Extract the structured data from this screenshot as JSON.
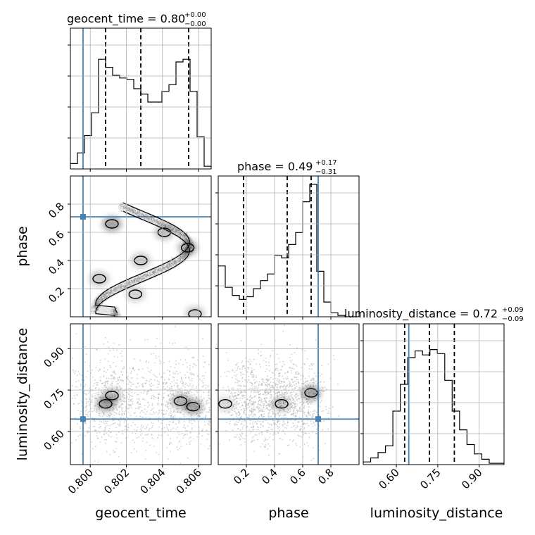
{
  "colors": {
    "truth": "#4682b4",
    "hist": "#000000",
    "grid": "#b0b0b0",
    "points": "#9a9a9a"
  },
  "titles": {
    "geocent_time": {
      "prefix": "geocent_time = ",
      "value": "0.80",
      "plus": "+0.00",
      "minus": "−0.00"
    },
    "phase": {
      "prefix": "phase = ",
      "value": "0.49",
      "plus": "+0.17",
      "minus": "−0.31"
    },
    "luminosity_distance": {
      "prefix": "luminosity_distance = ",
      "value": "0.72",
      "plus": "+0.09",
      "minus": "−0.09"
    }
  },
  "axis_labels": {
    "geocent_time": "geocent_time",
    "phase": "phase",
    "luminosity_distance": "luminosity_distance"
  },
  "chart_data": {
    "type": "corner",
    "parameters": [
      "geocent_time",
      "phase",
      "luminosity_distance"
    ],
    "truths": {
      "geocent_time": 0.7996,
      "phase": 0.71,
      "luminosity_distance": 0.645
    },
    "ranges": {
      "geocent_time": [
        0.7989,
        0.8067
      ],
      "phase": [
        0.0,
        1.0
      ],
      "luminosity_distance": [
        0.48,
        0.99
      ]
    },
    "ticks": {
      "geocent_time": {
        "values": [
          0.8,
          0.802,
          0.804,
          0.806
        ],
        "labels": [
          "0.800",
          "0.802",
          "0.804",
          "0.806"
        ]
      },
      "phase": {
        "values": [
          0.2,
          0.4,
          0.6,
          0.8
        ],
        "labels": [
          "0.2",
          "0.4",
          "0.6",
          "0.8"
        ]
      },
      "luminosity_distance": {
        "values": [
          0.6,
          0.75,
          0.9
        ],
        "labels": [
          "0.60",
          "0.75",
          "0.90"
        ]
      }
    },
    "quantiles": {
      "geocent_time": [
        0.80085,
        0.8028,
        0.80545
      ],
      "phase": [
        0.18,
        0.49,
        0.66
      ],
      "luminosity_distance": [
        0.63,
        0.72,
        0.81
      ]
    },
    "histograms": {
      "geocent_time": [
        0.04,
        0.12,
        0.25,
        0.42,
        0.82,
        0.76,
        0.7,
        0.68,
        0.67,
        0.6,
        0.56,
        0.5,
        0.5,
        0.58,
        0.63,
        0.8,
        0.82,
        0.58,
        0.24,
        0.02
      ],
      "phase": [
        0.38,
        0.22,
        0.16,
        0.13,
        0.15,
        0.21,
        0.27,
        0.32,
        0.46,
        0.44,
        0.54,
        0.63,
        0.86,
        0.99,
        0.34,
        0.11,
        0.03,
        0.01,
        0.0,
        0.0
      ],
      "luminosity_distance": [
        0.02,
        0.05,
        0.09,
        0.14,
        0.4,
        0.6,
        0.8,
        0.85,
        0.82,
        0.86,
        0.83,
        0.63,
        0.4,
        0.26,
        0.15,
        0.08,
        0.04,
        0.01,
        0.01
      ]
    },
    "density_modes": {
      "phase_vs_geocent_time": [
        {
          "x": 0.8012,
          "y": 0.66,
          "w": 1.0
        },
        {
          "x": 0.8041,
          "y": 0.6,
          "w": 0.7
        },
        {
          "x": 0.8054,
          "y": 0.49,
          "w": 0.9
        },
        {
          "x": 0.8028,
          "y": 0.4,
          "w": 0.6
        },
        {
          "x": 0.8005,
          "y": 0.27,
          "w": 0.6
        },
        {
          "x": 0.8025,
          "y": 0.16,
          "w": 0.5
        },
        {
          "x": 0.8058,
          "y": 0.02,
          "w": 0.6
        }
      ],
      "luminosity_distance_vs_geocent_time": [
        {
          "x": 0.80085,
          "y": 0.7,
          "w": 1.0
        },
        {
          "x": 0.8012,
          "y": 0.73,
          "w": 0.7
        },
        {
          "x": 0.805,
          "y": 0.71,
          "w": 0.8
        },
        {
          "x": 0.8057,
          "y": 0.69,
          "w": 1.0
        }
      ],
      "luminosity_distance_vs_phase": [
        {
          "x": 0.66,
          "y": 0.74,
          "w": 1.0
        },
        {
          "x": 0.45,
          "y": 0.7,
          "w": 0.6
        },
        {
          "x": 0.05,
          "y": 0.7,
          "w": 0.4
        }
      ]
    }
  }
}
